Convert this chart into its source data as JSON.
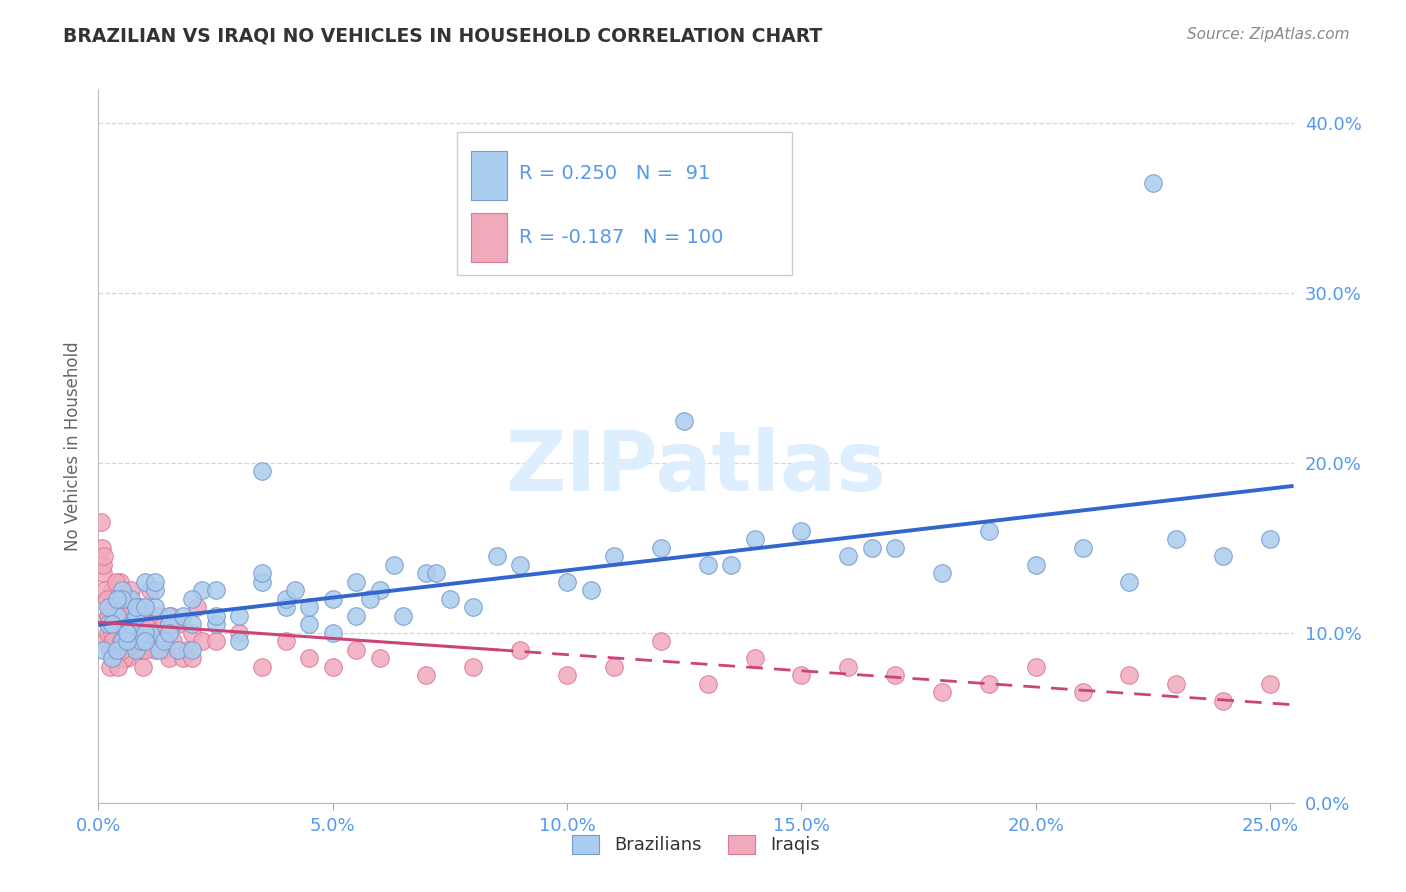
{
  "title": "BRAZILIAN VS IRAQI NO VEHICLES IN HOUSEHOLD CORRELATION CHART",
  "source": "Source: ZipAtlas.com",
  "ylabel": "No Vehicles in Household",
  "brazilian_R": 0.25,
  "brazilian_N": 91,
  "iraqi_R": -0.187,
  "iraqi_N": 100,
  "brazilian_color": "#aaccee",
  "iraqi_color": "#f0aabc",
  "brazilian_edge_color": "#7799cc",
  "iraqi_edge_color": "#dd7799",
  "brazilian_line_color": "#3366cc",
  "iraqi_line_color": "#cc4477",
  "grid_color": "#cccccc",
  "title_color": "#333333",
  "axis_label_color": "#666666",
  "tick_color": "#5599ee",
  "watermark_color": "#ddeeff",
  "x_ticks": [
    0,
    5,
    10,
    15,
    20,
    25
  ],
  "y_ticks": [
    0,
    10,
    20,
    30,
    40
  ],
  "xlim": [
    0,
    25.5
  ],
  "ylim": [
    0,
    42
  ],
  "legend_label_brazilian": "Brazilians",
  "legend_label_iraqi": "Iraqis"
}
